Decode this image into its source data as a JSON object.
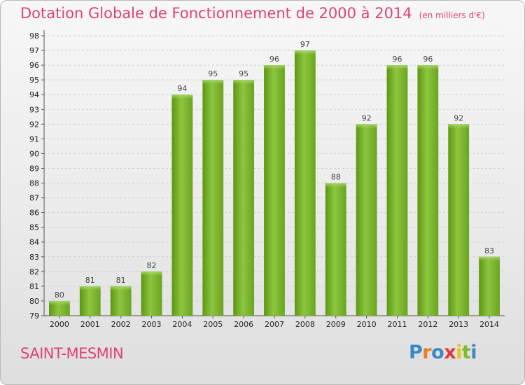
{
  "chart_data": {
    "type": "bar",
    "title": "Dotation Globale de Fonctionnement de 2000 à 2014",
    "units": "(en milliers d'€)",
    "categories": [
      "2000",
      "2001",
      "2002",
      "2003",
      "2004",
      "2005",
      "2006",
      "2007",
      "2008",
      "2009",
      "2010",
      "2011",
      "2012",
      "2013",
      "2014"
    ],
    "series": [
      {
        "values": [
          80,
          81,
          81,
          82,
          94,
          95,
          95,
          96,
          97,
          88,
          92,
          96,
          96,
          92,
          83
        ]
      }
    ],
    "ylim": [
      79,
      98
    ],
    "ytick_step": 1,
    "grid": true,
    "legend": "none",
    "bar_color": "#7fbb2e"
  },
  "footer": {
    "town": "SAINT-MESMIN",
    "brand": {
      "letters": [
        "P",
        "r",
        "o",
        "x",
        "i",
        "t",
        "i"
      ],
      "colors": [
        "#3a88c8",
        "#e8801c",
        "#3a88c8",
        "#e03a3a",
        "#e8c21c",
        "#7fbb2e",
        "#3a88c8"
      ]
    }
  }
}
